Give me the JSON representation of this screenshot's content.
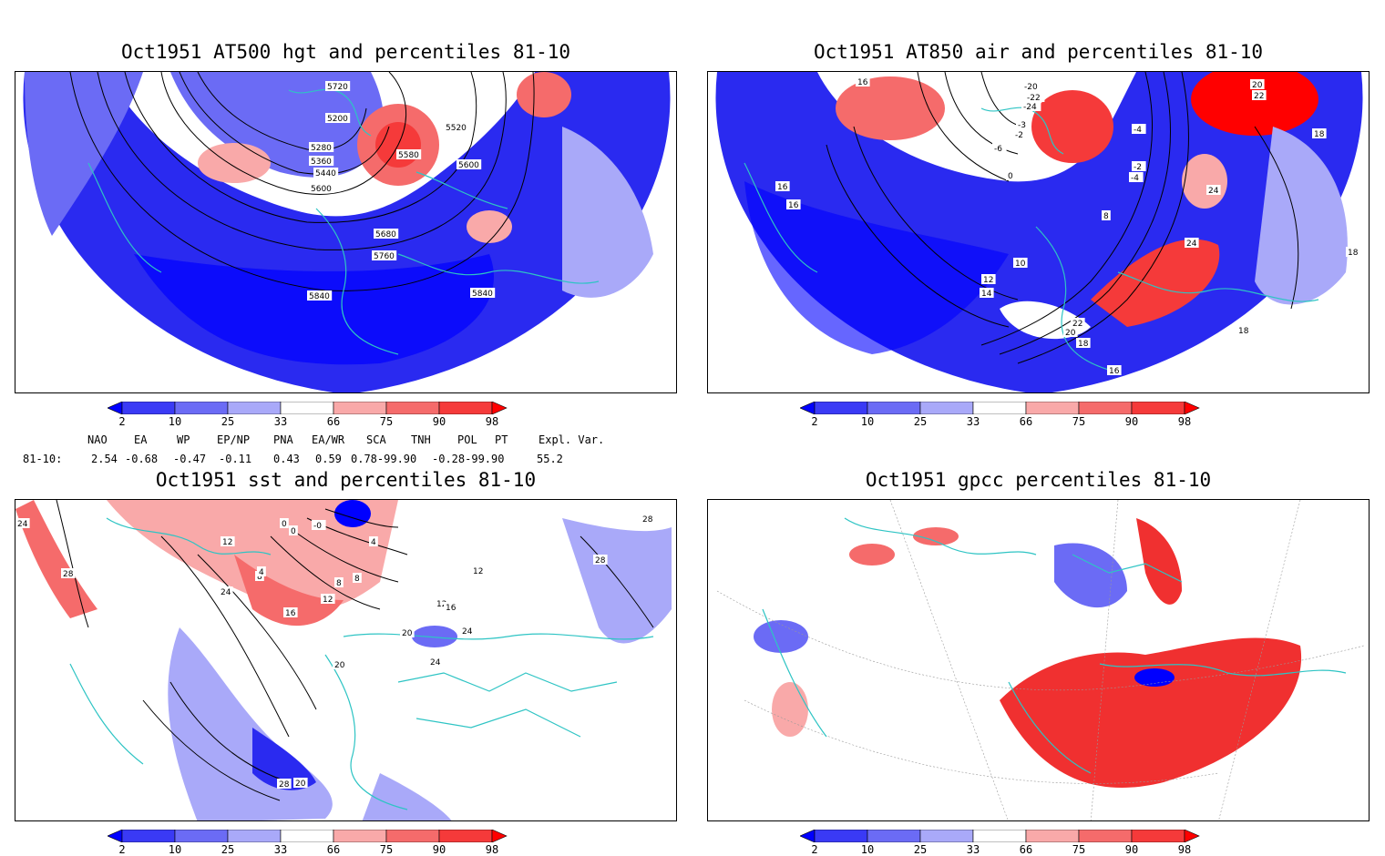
{
  "panels": [
    {
      "title": "Oct1951 AT500 hgt and percentiles 81-10",
      "contour_labels": [
        "5720",
        "5200",
        "5520",
        "5280",
        "5360",
        "5440",
        "5580",
        "5600",
        "5600",
        "5680",
        "5760",
        "5840",
        "5840"
      ]
    },
    {
      "title": "Oct1951 AT850 air and percentiles 81-10",
      "contour_labels": [
        "16",
        "-20",
        "-22",
        "-24",
        "-4",
        "-3",
        "-2",
        "-6",
        "0",
        "20",
        "22",
        "18",
        "24",
        "16",
        "16",
        "18",
        "10",
        "12",
        "14",
        "8",
        "24",
        "22",
        "20",
        "18",
        "16",
        "18",
        "-2",
        "-4"
      ]
    },
    {
      "title": "Oct1951 sst and percentiles 81-10",
      "contour_labels": [
        "24",
        "28",
        "12",
        "0",
        "0",
        "-0",
        "4",
        "8",
        "4",
        "24",
        "8",
        "8",
        "12",
        "16",
        "12",
        "16",
        "12",
        "20",
        "20",
        "24",
        "24",
        "28",
        "28",
        "28",
        "20"
      ]
    },
    {
      "title": "Oct1951 gpcc percentiles 81-10",
      "contour_labels": []
    }
  ],
  "colorbar": {
    "labels": [
      "2",
      "10",
      "25",
      "33",
      "66",
      "75",
      "90",
      "98"
    ],
    "colors": [
      "#0000ff",
      "#3a3af5",
      "#6b6bf5",
      "#a9a9f9",
      "#ffffff",
      "#f9a9a9",
      "#f56b6b",
      "#f53a3a",
      "#ff0000"
    ]
  },
  "indices": {
    "headers": [
      "NAO",
      "EA",
      "WP",
      "EP/NP",
      "PNA",
      "EA/WR",
      "SCA",
      "TNH",
      "POL",
      "PT",
      "Expl. Var."
    ],
    "row_label": "81-10:",
    "values": [
      "2.54",
      "-0.68",
      "-0.47",
      "-0.11",
      "0.43",
      "0.59",
      "0.78-99.90",
      "-0.28-99.90",
      "55.2"
    ]
  },
  "colors": {
    "coast": "#2ec4c4",
    "blue": "#2a2af0",
    "red": "#f03030"
  }
}
